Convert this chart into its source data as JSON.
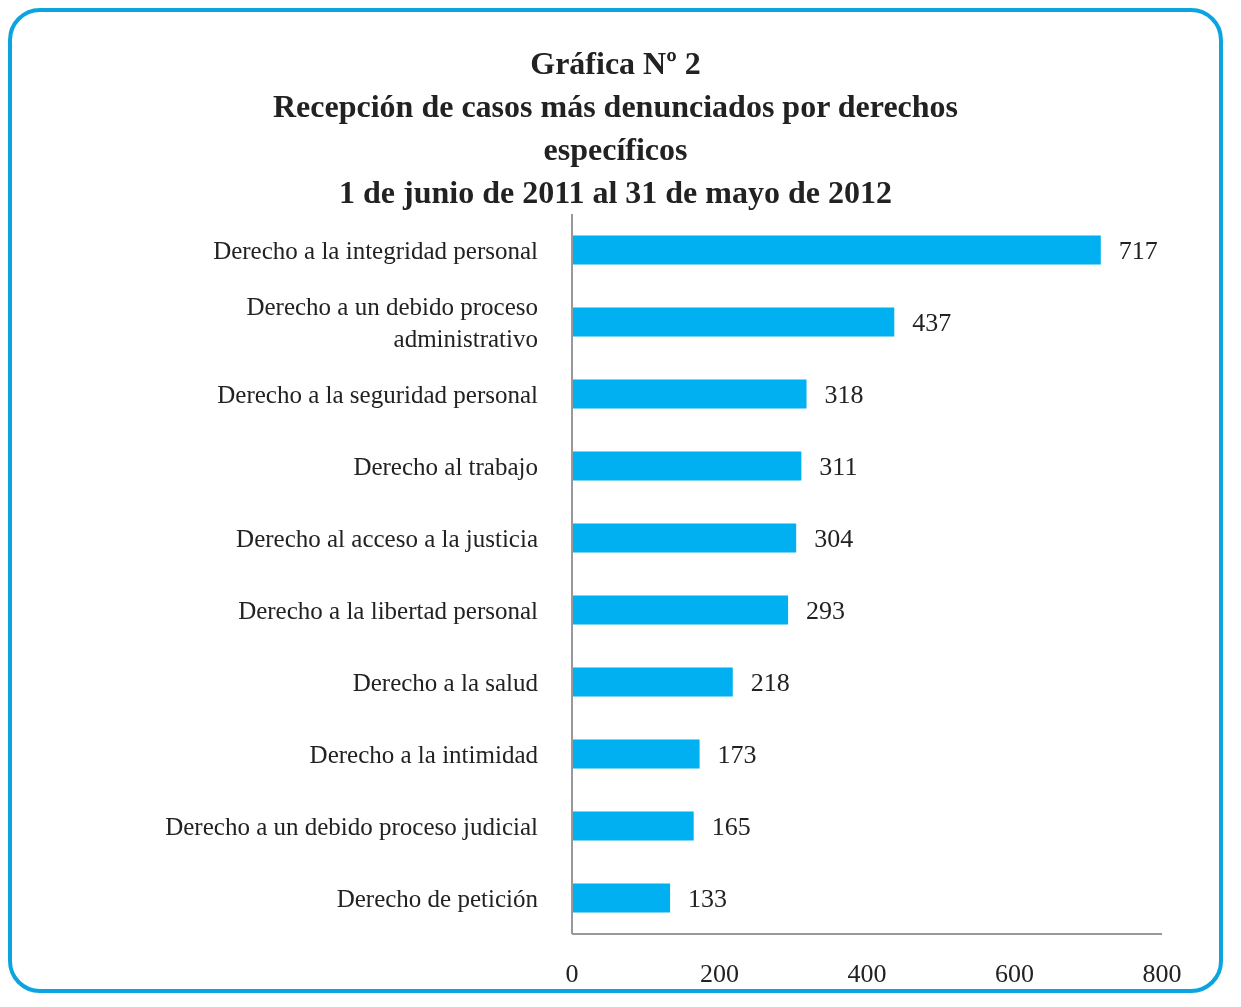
{
  "chart_data": {
    "type": "bar",
    "orientation": "horizontal",
    "title": "Gráfica Nº 2\nRecepción de casos más denunciados por derechos\nespecíficos\n1 de junio de 2011 al 31 de mayo de 2012",
    "categories": [
      "Derecho a la integridad personal",
      "Derecho a un debido proceso administrativo",
      "Derecho a la seguridad personal",
      "Derecho al trabajo",
      "Derecho al acceso a la justicia",
      "Derecho a la libertad personal",
      "Derecho a la salud",
      "Derecho a la intimidad",
      "Derecho a un debido proceso judicial",
      "Derecho de petición"
    ],
    "values": [
      717,
      437,
      318,
      311,
      304,
      293,
      218,
      173,
      165,
      133
    ],
    "color": "#00b0f0",
    "data_labels": true,
    "xlim": [
      0,
      800
    ],
    "xticks": [
      0,
      200,
      400,
      600,
      800
    ],
    "grid": false
  }
}
